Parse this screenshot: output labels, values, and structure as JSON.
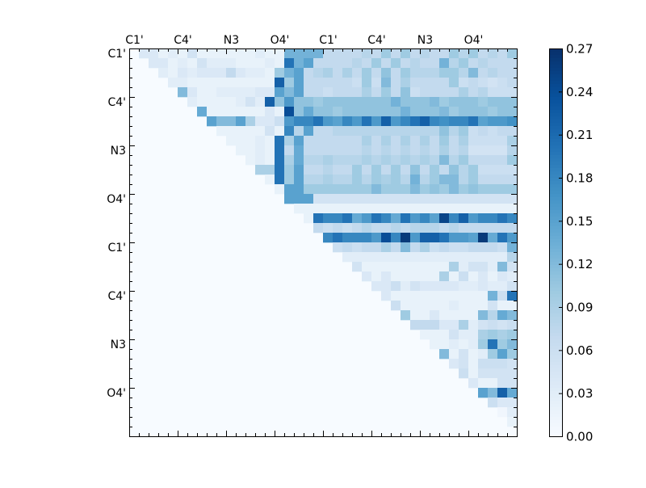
{
  "chart_data": {
    "type": "heatmap",
    "title": "",
    "xlabel": "",
    "ylabel": "",
    "n": 40,
    "x_tick_labels": [
      "C1'",
      "C4'",
      "N3",
      "O4'",
      "C1'",
      "C4'",
      "N3",
      "O4'"
    ],
    "y_tick_labels": [
      "C1'",
      "C4'",
      "N3",
      "O4'",
      "C1'",
      "C4'",
      "N3",
      "O4'"
    ],
    "tick_label_indices": [
      0,
      5,
      10,
      15,
      20,
      25,
      30,
      35
    ],
    "colormap": "Blues",
    "colorbar": {
      "vmin": 0.0,
      "vmax": 0.27,
      "ticks": [
        "0.00",
        "0.03",
        "0.06",
        "0.09",
        "0.12",
        "0.15",
        "0.18",
        "0.21",
        "0.24",
        "0.27"
      ]
    },
    "colors": {
      "low": "#f7fbff",
      "mid": "#6baed6",
      "high": "#08306b"
    },
    "grid": false,
    "rows": [
      {
        "row": 0,
        "start": 1,
        "values": [
          0.04,
          0.04,
          0.02,
          0.03,
          0.02,
          0.05,
          0.02,
          0.02,
          0.02,
          0.02,
          0.02,
          0.02,
          0.03,
          0.02,
          0.02,
          0.13,
          0.13,
          0.13,
          0.13,
          0.07,
          0.07,
          0.07,
          0.07,
          0.08,
          0.07,
          0.1,
          0.07,
          0.1,
          0.07,
          0.08,
          0.07,
          0.07,
          0.1,
          0.08,
          0.1,
          0.07,
          0.08,
          0.07,
          0.1
        ]
      },
      {
        "row": 1,
        "start": 2,
        "values": [
          0.04,
          0.04,
          0.02,
          0.03,
          0.02,
          0.05,
          0.03,
          0.03,
          0.03,
          0.02,
          0.02,
          0.02,
          0.03,
          0.02,
          0.2,
          0.13,
          0.15,
          0.07,
          0.07,
          0.07,
          0.07,
          0.08,
          0.07,
          0.1,
          0.07,
          0.1,
          0.07,
          0.08,
          0.07,
          0.07,
          0.13,
          0.08,
          0.1,
          0.07,
          0.08,
          0.07,
          0.07,
          0.07
        ]
      },
      {
        "row": 2,
        "start": 3,
        "values": [
          0.03,
          0.02,
          0.04,
          0.03,
          0.04,
          0.04,
          0.04,
          0.07,
          0.04,
          0.03,
          0.03,
          0.02,
          0.1,
          0.13,
          0.15,
          0.07,
          0.08,
          0.09,
          0.07,
          0.09,
          0.07,
          0.1,
          0.07,
          0.11,
          0.07,
          0.1,
          0.08,
          0.08,
          0.08,
          0.1,
          0.1,
          0.08,
          0.12,
          0.07,
          0.08,
          0.07,
          0.07
        ]
      },
      {
        "row": 3,
        "start": 4,
        "values": [
          0.03,
          0.03,
          0.02,
          0.02,
          0.02,
          0.02,
          0.02,
          0.02,
          0.02,
          0.02,
          0.02,
          0.22,
          0.1,
          0.15,
          0.07,
          0.07,
          0.07,
          0.07,
          0.07,
          0.06,
          0.1,
          0.06,
          0.12,
          0.07,
          0.09,
          0.07,
          0.07,
          0.07,
          0.07,
          0.1,
          0.06,
          0.07,
          0.06,
          0.05,
          0.06,
          0.07
        ]
      },
      {
        "row": 4,
        "start": 5,
        "values": [
          0.12,
          0.04,
          0.02,
          0.02,
          0.03,
          0.03,
          0.03,
          0.03,
          0.04,
          0.04,
          0.15,
          0.12,
          0.15,
          0.07,
          0.07,
          0.06,
          0.07,
          0.07,
          0.07,
          0.09,
          0.07,
          0.1,
          0.07,
          0.11,
          0.06,
          0.07,
          0.07,
          0.07,
          0.07,
          0.09,
          0.07,
          0.08,
          0.06,
          0.06,
          0.06
        ]
      },
      {
        "row": 5,
        "start": 6,
        "values": [
          0.03,
          0.02,
          0.02,
          0.02,
          0.02,
          0.03,
          0.05,
          0.03,
          0.22,
          0.11,
          0.16,
          0.11,
          0.11,
          0.1,
          0.11,
          0.11,
          0.11,
          0.11,
          0.11,
          0.11,
          0.11,
          0.13,
          0.11,
          0.11,
          0.11,
          0.12,
          0.1,
          0.11,
          0.11,
          0.11,
          0.1,
          0.11,
          0.11,
          0.11
        ]
      },
      {
        "row": 6,
        "start": 7,
        "values": [
          0.14,
          0.02,
          0.02,
          0.02,
          0.02,
          0.02,
          0.02,
          0.04,
          0.02,
          0.24,
          0.11,
          0.14,
          0.11,
          0.11,
          0.1,
          0.11,
          0.11,
          0.11,
          0.11,
          0.11,
          0.11,
          0.13,
          0.11,
          0.11,
          0.11,
          0.12,
          0.1,
          0.11,
          0.11,
          0.11,
          0.1,
          0.11,
          0.11
        ]
      },
      {
        "row": 7,
        "start": 8,
        "values": [
          0.15,
          0.12,
          0.12,
          0.15,
          0.09,
          0.04,
          0.04,
          0.06,
          0.16,
          0.18,
          0.18,
          0.2,
          0.16,
          0.15,
          0.18,
          0.16,
          0.2,
          0.16,
          0.22,
          0.16,
          0.18,
          0.2,
          0.22,
          0.18,
          0.17,
          0.18,
          0.18,
          0.2,
          0.15,
          0.16,
          0.16,
          0.17
        ]
      },
      {
        "row": 8,
        "start": 9,
        "values": [
          0.02,
          0.02,
          0.02,
          0.02,
          0.02,
          0.05,
          0.02,
          0.18,
          0.08,
          0.15,
          0.07,
          0.07,
          0.08,
          0.08,
          0.08,
          0.08,
          0.08,
          0.08,
          0.08,
          0.08,
          0.08,
          0.08,
          0.08,
          0.11,
          0.08,
          0.1,
          0.06,
          0.07,
          0.06,
          0.07,
          0.07
        ]
      },
      {
        "row": 9,
        "start": 10,
        "values": [
          0.02,
          0.02,
          0.02,
          0.03,
          0.02,
          0.2,
          0.09,
          0.15,
          0.07,
          0.07,
          0.07,
          0.07,
          0.07,
          0.07,
          0.09,
          0.07,
          0.09,
          0.07,
          0.09,
          0.07,
          0.09,
          0.07,
          0.1,
          0.07,
          0.09,
          0.06,
          0.06,
          0.06,
          0.06,
          0.09
        ]
      },
      {
        "row": 10,
        "start": 11,
        "values": [
          0.02,
          0.02,
          0.03,
          0.02,
          0.2,
          0.07,
          0.14,
          0.07,
          0.07,
          0.07,
          0.07,
          0.07,
          0.07,
          0.08,
          0.07,
          0.08,
          0.07,
          0.08,
          0.07,
          0.08,
          0.07,
          0.09,
          0.07,
          0.08,
          0.05,
          0.05,
          0.05,
          0.05,
          0.08
        ]
      },
      {
        "row": 11,
        "start": 12,
        "values": [
          0.02,
          0.03,
          0.02,
          0.2,
          0.09,
          0.14,
          0.08,
          0.08,
          0.09,
          0.08,
          0.08,
          0.08,
          0.09,
          0.08,
          0.09,
          0.08,
          0.09,
          0.08,
          0.09,
          0.08,
          0.12,
          0.08,
          0.1,
          0.07,
          0.07,
          0.07,
          0.07,
          0.1
        ]
      },
      {
        "row": 12,
        "start": 13,
        "values": [
          0.09,
          0.09,
          0.2,
          0.1,
          0.15,
          0.07,
          0.07,
          0.08,
          0.07,
          0.07,
          0.1,
          0.07,
          0.1,
          0.07,
          0.1,
          0.07,
          0.11,
          0.07,
          0.1,
          0.07,
          0.11,
          0.08,
          0.1,
          0.06,
          0.06,
          0.06,
          0.06,
          0.09
        ]
      },
      {
        "row": 13,
        "start": 14,
        "values": [
          0.02,
          0.2,
          0.1,
          0.15,
          0.08,
          0.08,
          0.09,
          0.08,
          0.08,
          0.1,
          0.08,
          0.1,
          0.09,
          0.1,
          0.08,
          0.13,
          0.08,
          0.1,
          0.12,
          0.12,
          0.08,
          0.1,
          0.07,
          0.07,
          0.07,
          0.07,
          0.1
        ]
      },
      {
        "row": 14,
        "start": 15,
        "values": [
          0.02,
          0.15,
          0.15,
          0.1,
          0.1,
          0.1,
          0.1,
          0.1,
          0.1,
          0.1,
          0.12,
          0.1,
          0.1,
          0.1,
          0.12,
          0.1,
          0.11,
          0.1,
          0.12,
          0.1,
          0.11,
          0.1,
          0.1,
          0.1,
          0.1,
          0.11
        ]
      },
      {
        "row": 15,
        "start": 16,
        "values": [
          0.15,
          0.15,
          0.15,
          0.05,
          0.05,
          0.05,
          0.05,
          0.05,
          0.05,
          0.05,
          0.05,
          0.05,
          0.05,
          0.05,
          0.05,
          0.05,
          0.05,
          0.05,
          0.05,
          0.05,
          0.05,
          0.05,
          0.05,
          0.05
        ]
      },
      {
        "row": 16,
        "start": 17,
        "values": [
          0.02,
          0.02,
          0.02,
          0.02,
          0.02,
          0.02,
          0.02,
          0.02,
          0.02,
          0.02,
          0.02,
          0.02,
          0.02,
          0.02,
          0.02,
          0.02,
          0.02,
          0.02,
          0.02,
          0.02,
          0.02,
          0.02,
          0.02
        ]
      },
      {
        "row": 17,
        "start": 18,
        "values": [
          0.02,
          0.2,
          0.18,
          0.18,
          0.2,
          0.14,
          0.16,
          0.2,
          0.18,
          0.14,
          0.2,
          0.16,
          0.18,
          0.15,
          0.25,
          0.18,
          0.22,
          0.16,
          0.18,
          0.18,
          0.2,
          0.18,
          0.22
        ]
      },
      {
        "row": 18,
        "start": 19,
        "values": [
          0.07,
          0.06,
          0.07,
          0.06,
          0.07,
          0.08,
          0.07,
          0.07,
          0.08,
          0.07,
          0.08,
          0.08,
          0.08,
          0.07,
          0.08,
          0.07,
          0.07,
          0.07,
          0.07,
          0.07,
          0.07,
          0.07
        ]
      },
      {
        "row": 19,
        "start": 20,
        "values": [
          0.18,
          0.2,
          0.18,
          0.18,
          0.18,
          0.16,
          0.24,
          0.18,
          0.26,
          0.16,
          0.22,
          0.22,
          0.2,
          0.16,
          0.16,
          0.15,
          0.26,
          0.14,
          0.2,
          0.16,
          0.2
        ]
      },
      {
        "row": 20,
        "start": 21,
        "values": [
          0.06,
          0.07,
          0.06,
          0.07,
          0.07,
          0.09,
          0.07,
          0.12,
          0.07,
          0.09,
          0.06,
          0.07,
          0.06,
          0.06,
          0.07,
          0.07,
          0.07,
          0.06,
          0.13,
          0.09,
          0.08
        ]
      },
      {
        "row": 21,
        "start": 22,
        "values": [
          0.03,
          0.03,
          0.03,
          0.03,
          0.03,
          0.03,
          0.03,
          0.03,
          0.03,
          0.03,
          0.03,
          0.03,
          0.03,
          0.03,
          0.03,
          0.03,
          0.03,
          0.08,
          0.03
        ]
      },
      {
        "row": 22,
        "start": 23,
        "values": [
          0.05,
          0.02,
          0.02,
          0.02,
          0.02,
          0.02,
          0.02,
          0.02,
          0.02,
          0.02,
          0.09,
          0.03,
          0.05,
          0.05,
          0.03,
          0.12,
          0.05,
          0.15
        ]
      },
      {
        "row": 23,
        "start": 24,
        "values": [
          0.04,
          0.02,
          0.04,
          0.02,
          0.02,
          0.02,
          0.02,
          0.02,
          0.09,
          0.02,
          0.06,
          0.02,
          0.04,
          0.02,
          0.04,
          0.03,
          0.04
        ]
      },
      {
        "row": 24,
        "start": 25,
        "values": [
          0.04,
          0.04,
          0.06,
          0.03,
          0.05,
          0.04,
          0.04,
          0.04,
          0.04,
          0.03,
          0.03,
          0.04,
          0.03,
          0.03,
          0.05,
          0.04
        ]
      },
      {
        "row": 25,
        "start": 26,
        "values": [
          0.04,
          0.02,
          0.02,
          0.02,
          0.02,
          0.02,
          0.02,
          0.02,
          0.02,
          0.02,
          0.02,
          0.13,
          0.06,
          0.2,
          0.12
        ]
      },
      {
        "row": 26,
        "start": 27,
        "values": [
          0.06,
          0.02,
          0.02,
          0.02,
          0.02,
          0.02,
          0.03,
          0.02,
          0.02,
          0.02,
          0.05,
          0.02,
          0.02,
          0.02
        ]
      },
      {
        "row": 27,
        "start": 28,
        "values": [
          0.1,
          0.02,
          0.02,
          0.04,
          0.02,
          0.02,
          0.02,
          0.02,
          0.12,
          0.08,
          0.14,
          0.12
        ]
      },
      {
        "row": 28,
        "start": 29,
        "values": [
          0.07,
          0.07,
          0.07,
          0.04,
          0.04,
          0.09,
          0.03,
          0.05,
          0.06,
          0.05,
          0.06
        ]
      },
      {
        "row": 29,
        "start": 30,
        "values": [
          0.02,
          0.02,
          0.02,
          0.05,
          0.03,
          0.03,
          0.09,
          0.1,
          0.09,
          0.1
        ]
      },
      {
        "row": 30,
        "start": 31,
        "values": [
          0.02,
          0.02,
          0.03,
          0.02,
          0.03,
          0.1,
          0.2,
          0.1,
          0.12
        ]
      },
      {
        "row": 31,
        "start": 32,
        "values": [
          0.12,
          0.02,
          0.05,
          0.02,
          0.03,
          0.1,
          0.15,
          0.1
        ]
      },
      {
        "row": 32,
        "start": 33,
        "values": [
          0.04,
          0.05,
          0.02,
          0.06,
          0.06,
          0.06,
          0.05
        ]
      },
      {
        "row": 33,
        "start": 34,
        "values": [
          0.06,
          0.02,
          0.05,
          0.05,
          0.05,
          0.05
        ]
      },
      {
        "row": 34,
        "start": 35,
        "values": [
          0.04,
          0.02,
          0.02,
          0.05,
          0.05
        ]
      },
      {
        "row": 35,
        "start": 36,
        "values": [
          0.15,
          0.12,
          0.22,
          0.14
        ]
      },
      {
        "row": 36,
        "start": 37,
        "values": [
          0.06,
          0.04,
          0.04
        ]
      },
      {
        "row": 37,
        "start": 38,
        "values": [
          0.01,
          0.03
        ]
      },
      {
        "row": 38,
        "start": 39,
        "values": [
          0.02
        ]
      }
    ]
  }
}
